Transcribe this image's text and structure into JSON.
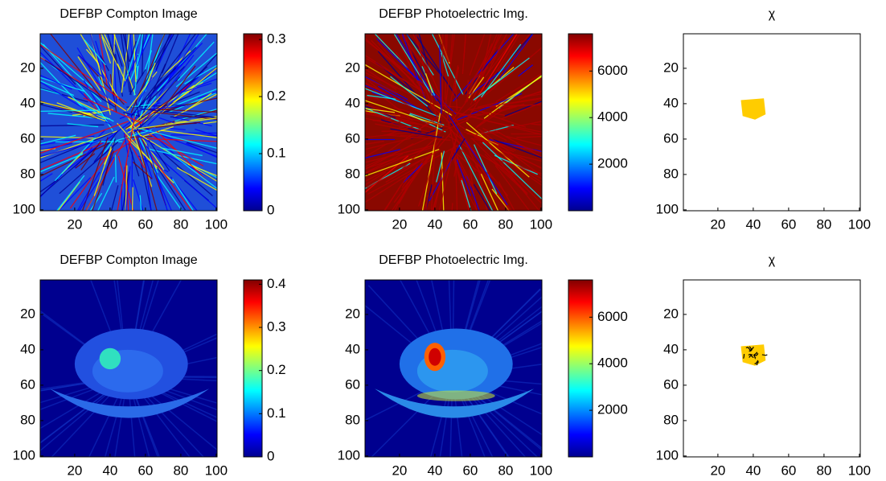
{
  "chart_data": [
    {
      "type": "image",
      "title": "DEFBP Compton Image",
      "xlim": [
        0.5,
        100.5
      ],
      "ylim": [
        0.5,
        100.5
      ],
      "y_reversed": true,
      "xticks": [
        20,
        40,
        60,
        80,
        100
      ],
      "yticks": [
        20,
        40,
        60,
        80,
        100
      ],
      "clim": [
        0,
        0.31
      ],
      "cticks": [
        0,
        0.1,
        0.2,
        0.3
      ],
      "colormap": "jet"
    },
    {
      "type": "image",
      "title": "DEFBP Photoelectric Img.",
      "xlim": [
        0.5,
        100.5
      ],
      "ylim": [
        0.5,
        100.5
      ],
      "y_reversed": true,
      "xticks": [
        20,
        40,
        60,
        80,
        100
      ],
      "yticks": [
        20,
        40,
        60,
        80,
        100
      ],
      "clim": [
        0,
        7600
      ],
      "cticks": [
        2000,
        4000,
        6000
      ],
      "colormap": "jet"
    },
    {
      "type": "image",
      "title": "χ",
      "xlim": [
        0.5,
        100.5
      ],
      "ylim": [
        0.5,
        100.5
      ],
      "y_reversed": true,
      "xticks": [
        20,
        40,
        60,
        80,
        100
      ],
      "yticks": [
        20,
        40,
        60,
        80,
        100
      ]
    },
    {
      "type": "image",
      "title": "DEFBP Compton Image",
      "xlim": [
        0.5,
        100.5
      ],
      "ylim": [
        0.5,
        100.5
      ],
      "y_reversed": true,
      "xticks": [
        20,
        40,
        60,
        80,
        100
      ],
      "yticks": [
        20,
        40,
        60,
        80,
        100
      ],
      "clim": [
        0,
        0.41
      ],
      "cticks": [
        0,
        0.1,
        0.2,
        0.3,
        0.4
      ],
      "colormap": "jet"
    },
    {
      "type": "image",
      "title": "DEFBP Photoelectric Img.",
      "xlim": [
        0.5,
        100.5
      ],
      "ylim": [
        0.5,
        100.5
      ],
      "y_reversed": true,
      "xticks": [
        20,
        40,
        60,
        80,
        100
      ],
      "yticks": [
        20,
        40,
        60,
        80,
        100
      ],
      "clim": [
        0,
        7600
      ],
      "cticks": [
        2000,
        4000,
        6000
      ],
      "colormap": "jet"
    },
    {
      "type": "image",
      "title": "χ",
      "xlim": [
        0.5,
        100.5
      ],
      "ylim": [
        0.5,
        100.5
      ],
      "y_reversed": true,
      "xticks": [
        20,
        40,
        60,
        80,
        100
      ],
      "yticks": [
        20,
        40,
        60,
        80,
        100
      ]
    }
  ]
}
